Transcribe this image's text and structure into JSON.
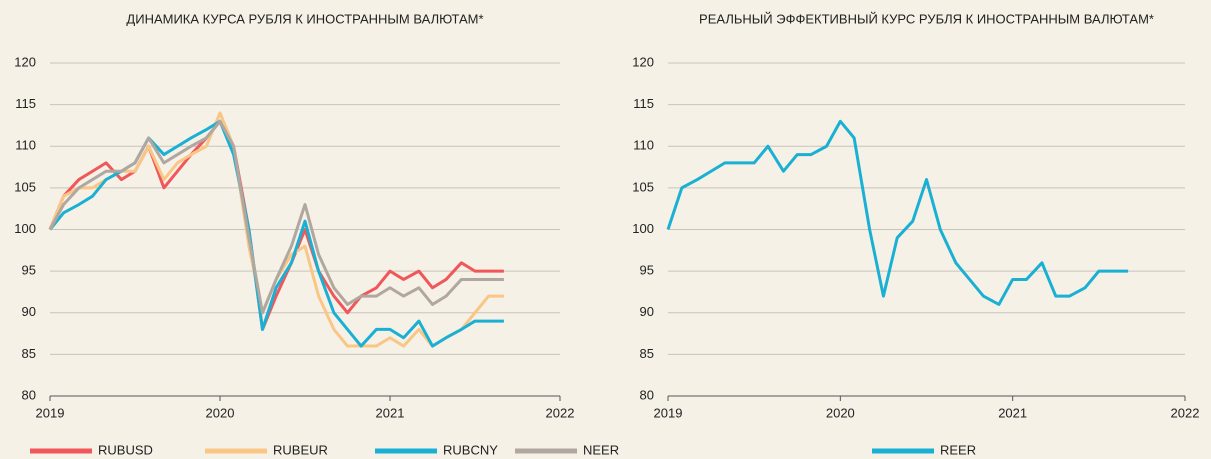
{
  "chart_data": [
    {
      "type": "line",
      "title": "ДИНАМИКА КУРСА РУБЛЯ К ИНОСТРАННЫМ ВАЛЮТАМ*",
      "x": [
        2019.0,
        2019.08,
        2019.17,
        2019.25,
        2019.33,
        2019.42,
        2019.5,
        2019.58,
        2019.67,
        2019.75,
        2019.83,
        2019.92,
        2020.0,
        2020.08,
        2020.17,
        2020.25,
        2020.33,
        2020.42,
        2020.5,
        2020.58,
        2020.67,
        2020.75,
        2020.83,
        2020.92,
        2021.0,
        2021.08,
        2021.17,
        2021.25,
        2021.33,
        2021.42,
        2021.5,
        2021.58,
        2021.67
      ],
      "series": [
        {
          "name": "RUBUSD",
          "color": "#f0575a",
          "values": [
            100,
            104,
            106,
            107,
            108,
            106,
            107,
            110,
            105,
            107,
            109,
            111,
            113,
            110,
            100,
            88,
            92,
            96,
            100,
            95,
            92,
            90,
            92,
            93,
            95,
            94,
            95,
            93,
            94,
            96,
            95,
            95,
            95
          ]
        },
        {
          "name": "RUBEUR",
          "color": "#f9c686",
          "values": [
            100,
            104,
            105,
            105,
            106,
            107,
            107,
            110,
            106,
            108,
            109,
            110,
            114,
            110,
            98,
            90,
            94,
            97,
            98,
            92,
            88,
            86,
            86,
            86,
            87,
            86,
            88,
            86,
            87,
            88,
            90,
            92,
            92
          ]
        },
        {
          "name": "RUBCNY",
          "color": "#1ab0d4",
          "values": [
            100,
            102,
            103,
            104,
            106,
            107,
            108,
            111,
            109,
            110,
            111,
            112,
            113,
            109,
            100,
            88,
            93,
            96,
            101,
            95,
            90,
            88,
            86,
            88,
            88,
            87,
            89,
            86,
            87,
            88,
            89,
            89,
            89
          ]
        },
        {
          "name": "NEER",
          "color": "#b0a8a0",
          "values": [
            100,
            103,
            105,
            106,
            107,
            107,
            108,
            111,
            108,
            109,
            110,
            111,
            113,
            110,
            99,
            90,
            94,
            98,
            103,
            97,
            93,
            91,
            92,
            92,
            93,
            92,
            93,
            91,
            92,
            94,
            94,
            94,
            94
          ]
        }
      ],
      "xlim": [
        2019,
        2022
      ],
      "xticks": [
        2019,
        2020,
        2021,
        2022
      ],
      "ylim": [
        80,
        120
      ],
      "yticks": [
        80,
        85,
        90,
        95,
        100,
        105,
        110,
        115,
        120
      ],
      "grid": true
    },
    {
      "type": "line",
      "title": "РЕАЛЬНЫЙ ЭФФЕКТИВНЫЙ КУРС РУБЛЯ К ИНОСТРАННЫМ ВАЛЮТАМ*",
      "x": [
        2019.0,
        2019.08,
        2019.17,
        2019.25,
        2019.33,
        2019.42,
        2019.5,
        2019.58,
        2019.67,
        2019.75,
        2019.83,
        2019.92,
        2020.0,
        2020.08,
        2020.17,
        2020.25,
        2020.33,
        2020.42,
        2020.5,
        2020.58,
        2020.67,
        2020.75,
        2020.83,
        2020.92,
        2021.0,
        2021.08,
        2021.17,
        2021.25,
        2021.33,
        2021.42,
        2021.5,
        2021.58,
        2021.67
      ],
      "series": [
        {
          "name": "REER",
          "color": "#1ab0d4",
          "values": [
            100,
            105,
            106,
            107,
            108,
            108,
            108,
            110,
            107,
            109,
            109,
            110,
            113,
            111,
            100,
            92,
            99,
            101,
            106,
            100,
            96,
            94,
            92,
            91,
            94,
            94,
            96,
            92,
            92,
            93,
            95,
            95,
            95
          ]
        }
      ],
      "xlim": [
        2019,
        2022
      ],
      "xticks": [
        2019,
        2020,
        2021,
        2022
      ],
      "ylim": [
        80,
        120
      ],
      "yticks": [
        80,
        85,
        90,
        95,
        100,
        105,
        110,
        115,
        120
      ],
      "grid": true
    }
  ]
}
